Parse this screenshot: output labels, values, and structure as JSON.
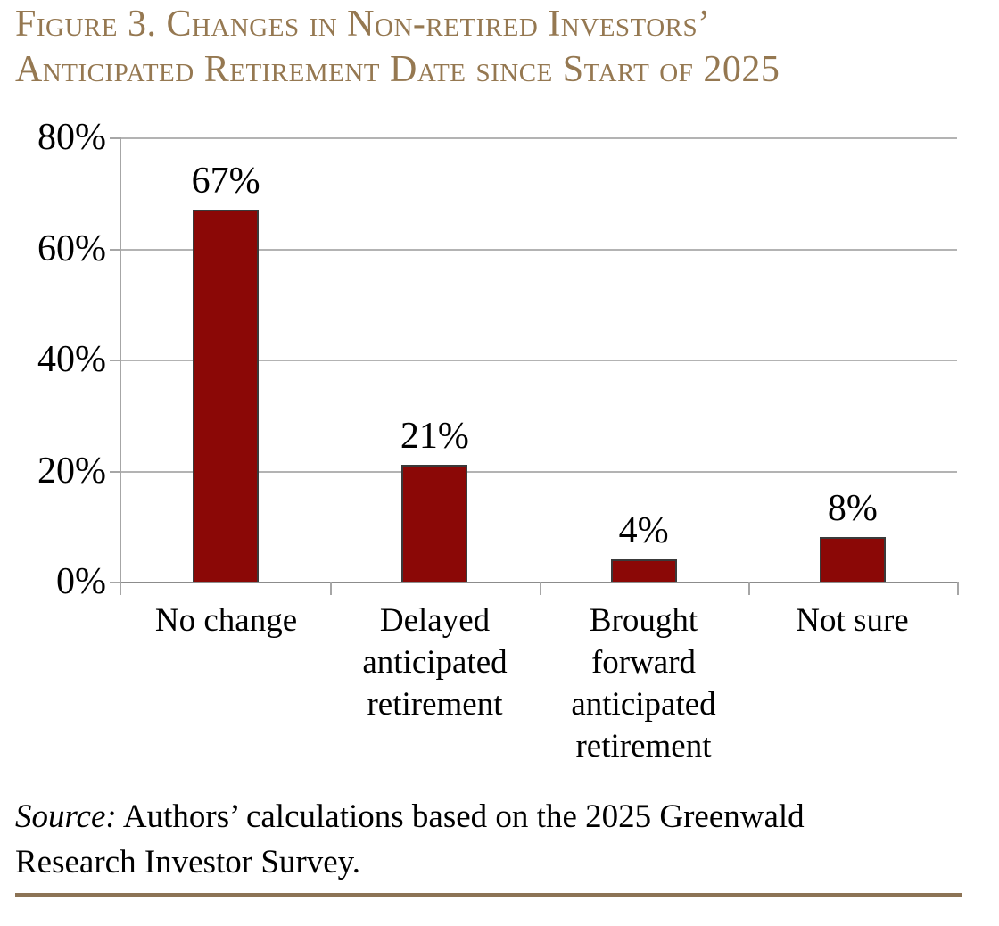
{
  "title": {
    "line1": "Figure 3. Changes in Non-retired Investors’",
    "line2": "Anticipated Retirement Date since Start of 2025"
  },
  "chart_data": {
    "type": "bar",
    "title": "Figure 3. Changes in Non-retired Investors’ Anticipated Retirement Date since Start of 2025",
    "categories": [
      "No change",
      "Delayed anticipated retirement",
      "Brought forward anticipated retirement",
      "Not sure"
    ],
    "category_labels": [
      "No change",
      "Delayed\nanticipated\nretirement",
      "Brought\nforward\nanticipated\nretirement",
      "Not sure"
    ],
    "values": [
      67,
      21,
      4,
      8
    ],
    "value_labels": [
      "67%",
      "21%",
      "4%",
      "8%"
    ],
    "xlabel": "",
    "ylabel": "",
    "ylim": [
      0,
      80
    ],
    "ytick_interval": 20,
    "ytick_labels": [
      "80%",
      "60%",
      "40%",
      "20%",
      "0%"
    ],
    "grid": "horizontal gridlines on",
    "legend": "none",
    "bar_color": "#8b0806",
    "bar_border_color": "#3a3a3a"
  },
  "source": {
    "prefix": "Source:",
    "line1_rest": " Authors’ calculations based on the 2025 Greenwald",
    "line2": "Research Investor Survey."
  },
  "colors": {
    "title_text": "#957851",
    "bottom_rule": "#8c7355",
    "axis": "#a6a6a6",
    "gridline": "#b3b3b3",
    "label_text": "#000000"
  }
}
